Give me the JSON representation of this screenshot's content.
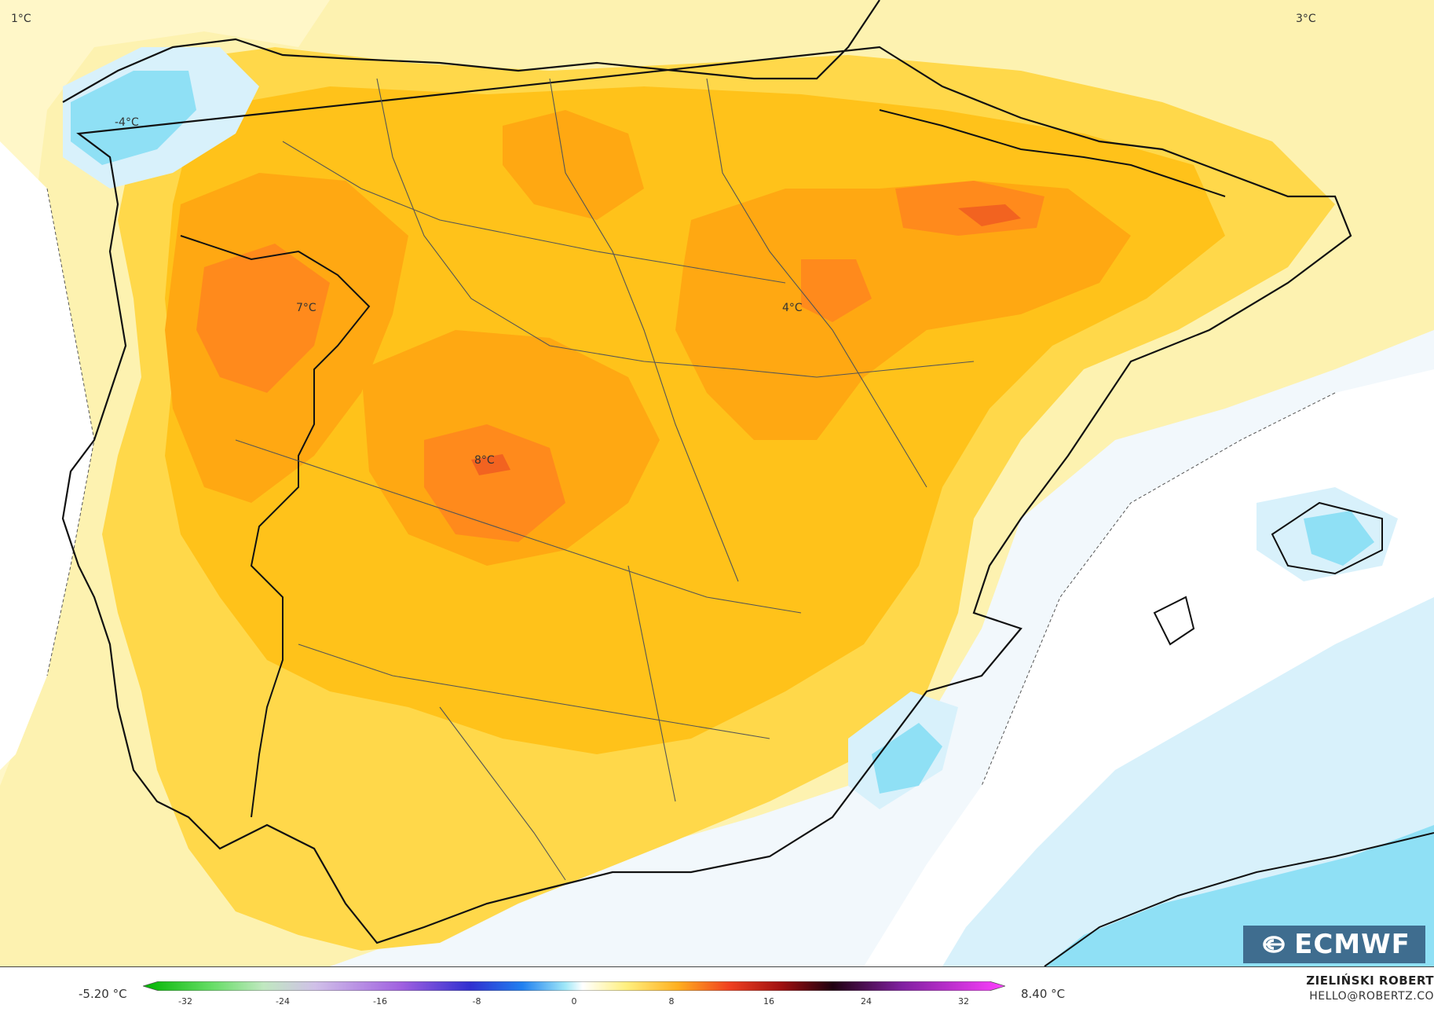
{
  "map": {
    "labels": [
      {
        "text": "1°C",
        "id": "label-top-left"
      },
      {
        "text": "-4°C",
        "id": "label-galicia"
      },
      {
        "text": "3°C",
        "id": "label-northeast"
      },
      {
        "text": "7°C",
        "id": "label-west"
      },
      {
        "text": "4°C",
        "id": "label-aragon"
      },
      {
        "text": "8°C",
        "id": "label-center"
      }
    ],
    "colors": {
      "sea": "#f2f8fc",
      "pale_yellow": "#fdf2b0",
      "yellow": "#ffd84a",
      "gold": "#ffc21a",
      "orange": "#ffa812",
      "deep_orange": "#ff8a1c",
      "red_orange": "#f26320",
      "cold_blue": "#8fe0f5",
      "cold_light": "#d8f1fb",
      "land_pale": "#fff7c8",
      "coast": "#111111",
      "border": "#555555"
    }
  },
  "logo": {
    "text": "ECMWF"
  },
  "legend": {
    "min_label": "-5.20 °C",
    "max_label": "8.40 °C",
    "ticks": [
      "-32",
      "-24",
      "-16",
      "-8",
      "0",
      "8",
      "16",
      "24",
      "32"
    ]
  },
  "credit": {
    "name": "ZIELIŃSKI ROBERT",
    "email": "HELLO@ROBERTZ.CO"
  }
}
